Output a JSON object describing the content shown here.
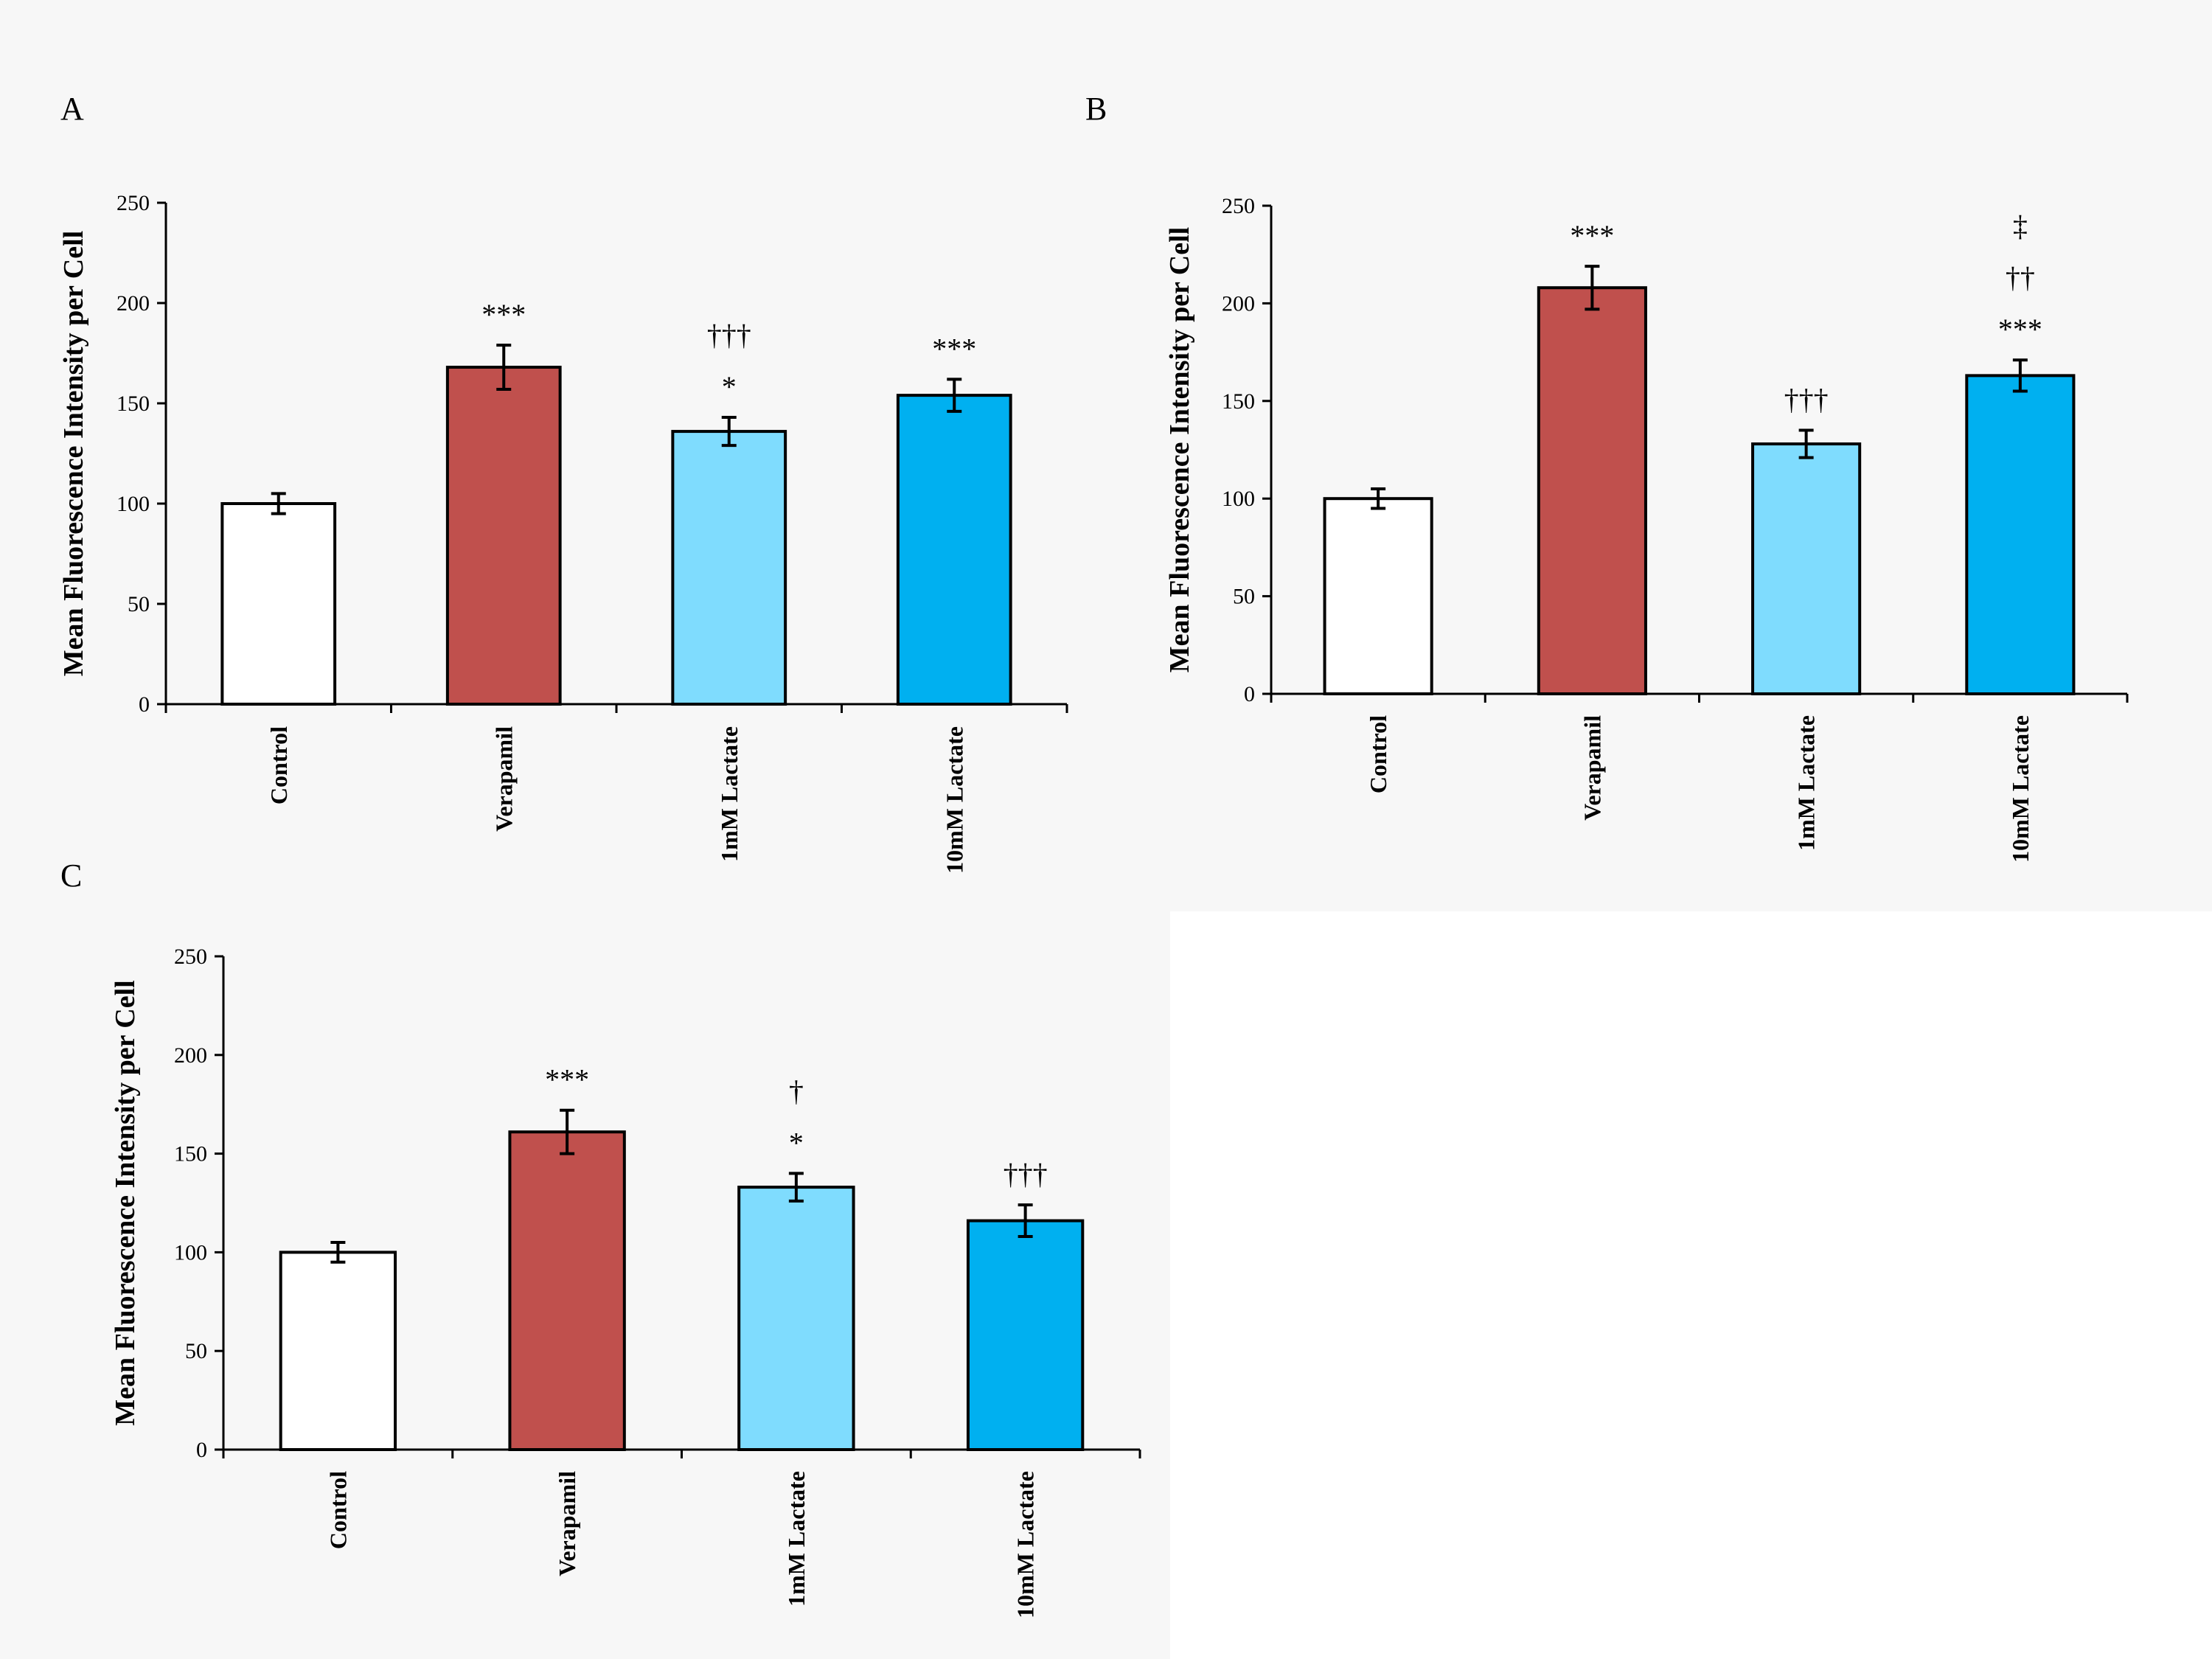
{
  "figure": {
    "panels": [
      "A",
      "B",
      "C"
    ]
  },
  "chart_data": [
    {
      "panel": "A",
      "type": "bar",
      "title": "",
      "xlabel": "",
      "ylabel": "Mean Fluorescence Intensity per Cell",
      "ylim": [
        0,
        250
      ],
      "yticks": [
        0,
        50,
        100,
        150,
        200,
        250
      ],
      "grid": false,
      "categories": [
        "Control",
        "Verapamil",
        "1mM Lactate",
        "10mM Lactate"
      ],
      "values": [
        100,
        168,
        136,
        154
      ],
      "errors": [
        5,
        11,
        7,
        8
      ],
      "colors": [
        "#ffffff",
        "#c0504d",
        "#7fdcfe",
        "#00b0f0"
      ],
      "annotations": [
        [],
        [
          "***"
        ],
        [
          "*",
          "†††"
        ],
        [
          "***"
        ]
      ]
    },
    {
      "panel": "B",
      "type": "bar",
      "title": "",
      "xlabel": "",
      "ylabel": "Mean Fluorescence Intensity per Cell",
      "ylim": [
        0,
        250
      ],
      "yticks": [
        0,
        50,
        100,
        150,
        200,
        250
      ],
      "grid": false,
      "categories": [
        "Control",
        "Verapamil",
        "1mM Lactate",
        "10mM Lactate"
      ],
      "values": [
        100,
        208,
        128,
        163
      ],
      "errors": [
        5,
        11,
        7,
        8
      ],
      "colors": [
        "#ffffff",
        "#c0504d",
        "#7fdcfe",
        "#00b0f0"
      ],
      "annotations": [
        [],
        [
          "***"
        ],
        [
          "†††"
        ],
        [
          "***",
          "††",
          "‡"
        ]
      ]
    },
    {
      "panel": "C",
      "type": "bar",
      "title": "",
      "xlabel": "",
      "ylabel": "Mean Fluorescence Intensity per Cell",
      "ylim": [
        0,
        250
      ],
      "yticks": [
        0,
        50,
        100,
        150,
        200,
        250
      ],
      "grid": false,
      "categories": [
        "Control",
        "Verapamil",
        "1mM Lactate",
        "10mM Lactate"
      ],
      "values": [
        100,
        161,
        133,
        116
      ],
      "errors": [
        5,
        11,
        7,
        8
      ],
      "colors": [
        "#ffffff",
        "#c0504d",
        "#7fdcfe",
        "#00b0f0"
      ],
      "annotations": [
        [],
        [
          "***"
        ],
        [
          "*",
          "†"
        ],
        [
          "†††"
        ]
      ]
    }
  ]
}
